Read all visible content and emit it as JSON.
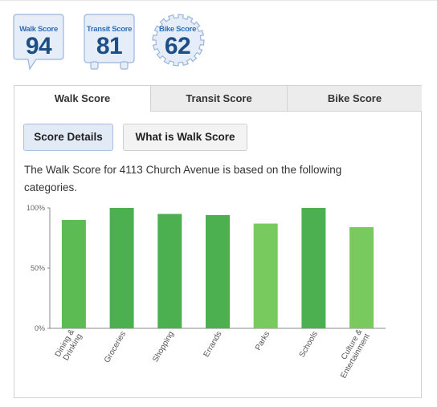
{
  "badges": {
    "walk": {
      "label": "Walk Score",
      "value": "94"
    },
    "transit": {
      "label": "Transit Score",
      "value": "81"
    },
    "bike": {
      "label": "Bike Score",
      "value": "62"
    }
  },
  "tabs": {
    "walk": "Walk Score",
    "transit": "Transit Score",
    "bike": "Bike Score",
    "active": "walk"
  },
  "buttons": {
    "details": "Score Details",
    "what": "What is Walk Score"
  },
  "description": "The Walk Score for 4113 Church Avenue is based on the following categories.",
  "colors": {
    "bar_dark": "#4caf50",
    "bar_light": "#78c95e",
    "tab_inactive": "#ececec",
    "badge_text": "#1d4f86"
  },
  "chart_data": {
    "type": "bar",
    "categories": [
      "Dining & Drinking",
      "Groceries",
      "Shopping",
      "Errands",
      "Parks",
      "Schools",
      "Culture & Entertainment"
    ],
    "category_lines": [
      [
        "Dining &",
        "Drinking"
      ],
      [
        "Groceries"
      ],
      [
        "Shopping"
      ],
      [
        "Errands"
      ],
      [
        "Parks"
      ],
      [
        "Schools"
      ],
      [
        "Culture &",
        "Entertainment"
      ]
    ],
    "values": [
      90,
      100,
      95,
      94,
      87,
      100,
      84
    ],
    "bar_shades": [
      "mid",
      "dark",
      "dark",
      "dark",
      "light",
      "dark",
      "light"
    ],
    "yticks": [
      "0%",
      "50%",
      "100%"
    ],
    "ylim": [
      0,
      100
    ],
    "title": "",
    "xlabel": "",
    "ylabel": "",
    "grid": false
  }
}
